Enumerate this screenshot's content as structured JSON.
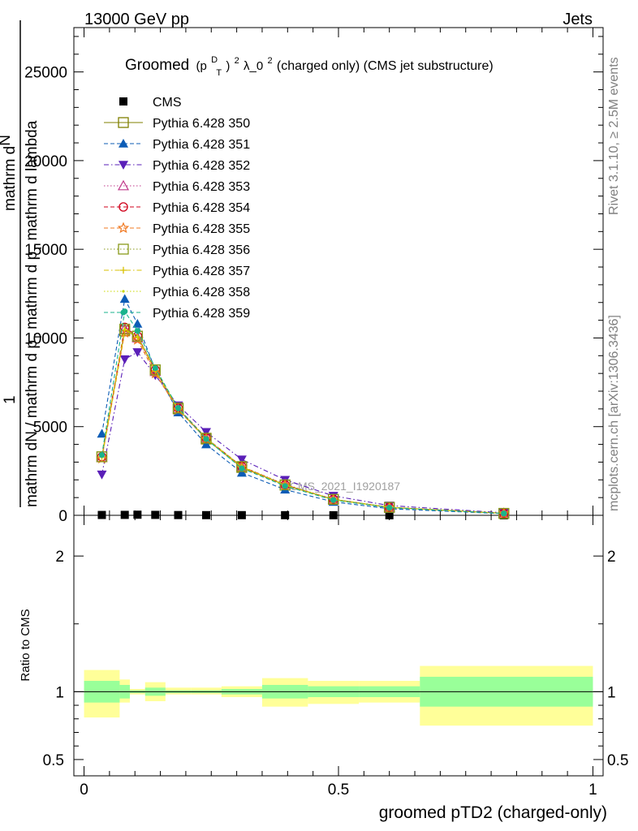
{
  "header": {
    "left": "13000 GeV pp",
    "right": "Jets"
  },
  "side_labels": {
    "rivet": "Rivet 3.1.10, ≥ 2.5M events",
    "mcplots": "mcplots.cern.ch [arXiv:1306.3436]"
  },
  "watermark": "CMS_2021_I1920187",
  "main_title": {
    "prefix": "Groomed",
    "p": "(p",
    "sub": "T",
    "sup": "D",
    "close": ")",
    "sq": "2",
    "rest": " λ_0",
    "sq2": "2",
    "tail": "  (charged only) (CMS jet substructure)"
  },
  "ylabel_main": {
    "one": "1",
    "num": "mathrm d",
    "numN": "N",
    "denom": "mathrm dN / mathrm d p",
    "denomsub": "T",
    "denom2": " mathrm d p",
    "denomsub2": "T",
    "denom3": " mathrm d lambda"
  },
  "ylabel_ratio": "Ratio to CMS",
  "xlabel": "groomed pTD2 (charged-only)",
  "chart_data": [
    {
      "type": "line",
      "panel": "main",
      "xlim": [
        -0.02,
        1.02
      ],
      "ylim": [
        0,
        27500
      ],
      "yticks": [
        0,
        5000,
        10000,
        15000,
        20000,
        25000
      ],
      "ytick_labels": [
        "0",
        "5000",
        "10000",
        "15000",
        "20000",
        "25000"
      ],
      "x": [
        0.035,
        0.08,
        0.105,
        0.14,
        0.185,
        0.24,
        0.31,
        0.395,
        0.49,
        0.6,
        0.825
      ],
      "series": [
        {
          "name": "CMS",
          "color": "#000000",
          "marker": "square-filled",
          "dash": "none",
          "values": [
            20,
            25,
            35,
            25,
            15,
            10,
            10,
            8,
            6,
            4,
            2
          ]
        },
        {
          "name": "Pythia 6.428 350",
          "color": "#808000",
          "marker": "square-open",
          "dash": "solid",
          "values": [
            3300,
            10400,
            10100,
            8200,
            6000,
            4300,
            2700,
            1700,
            900,
            450,
            110
          ]
        },
        {
          "name": "Pythia 6.428 351",
          "color": "#0d5cb6",
          "marker": "triangle-up-filled",
          "dash": "dashed",
          "values": [
            4600,
            12200,
            10800,
            8200,
            5800,
            4000,
            2400,
            1450,
            760,
            370,
            90
          ]
        },
        {
          "name": "Pythia 6.428 352",
          "color": "#5a1fb8",
          "marker": "triangle-down-filled",
          "dash": "dashdot",
          "values": [
            2300,
            8800,
            9200,
            7900,
            6200,
            4700,
            3150,
            2000,
            1100,
            550,
            140
          ]
        },
        {
          "name": "Pythia 6.428 353",
          "color": "#c0398b",
          "marker": "triangle-up-open",
          "dash": "dotted",
          "values": [
            3250,
            10500,
            10000,
            8100,
            6000,
            4350,
            2750,
            1750,
            900,
            450,
            110
          ]
        },
        {
          "name": "Pythia 6.428 354",
          "color": "#d0021b",
          "marker": "circle-open",
          "dash": "dashed",
          "values": [
            3300,
            10600,
            10100,
            8200,
            6050,
            4350,
            2750,
            1720,
            900,
            450,
            110
          ]
        },
        {
          "name": "Pythia 6.428 355",
          "color": "#f07820",
          "marker": "star-open",
          "dash": "dashed",
          "values": [
            3200,
            10300,
            9900,
            8000,
            5950,
            4300,
            2700,
            1700,
            880,
            440,
            110
          ]
        },
        {
          "name": "Pythia 6.428 356",
          "color": "#8a9a1b",
          "marker": "square-open",
          "dash": "dotted",
          "values": [
            3300,
            10500,
            10100,
            8200,
            6050,
            4350,
            2750,
            1720,
            900,
            450,
            110
          ]
        },
        {
          "name": "Pythia 6.428 357",
          "color": "#d8c000",
          "marker": "plus",
          "dash": "dashdot",
          "values": [
            3280,
            10450,
            10050,
            8150,
            6000,
            4330,
            2730,
            1710,
            895,
            448,
            110
          ]
        },
        {
          "name": "Pythia 6.428 358",
          "color": "#c8d800",
          "marker": "dot",
          "dash": "dotted",
          "values": [
            3290,
            10480,
            10080,
            8170,
            6020,
            4340,
            2740,
            1715,
            898,
            449,
            110
          ]
        },
        {
          "name": "Pythia 6.428 359",
          "color": "#1ab38c",
          "marker": "circle-filled",
          "dash": "dashed",
          "values": [
            3400,
            11500,
            10400,
            8300,
            6050,
            4300,
            2650,
            1650,
            860,
            430,
            105
          ]
        }
      ],
      "legend": "top-left"
    },
    {
      "type": "area",
      "panel": "ratio",
      "xlim": [
        -0.02,
        1.02
      ],
      "ylim": [
        0.38,
        2.3
      ],
      "yticks": [
        0.5,
        1,
        2
      ],
      "ytick_labels": [
        "0.5",
        "1",
        "2"
      ],
      "xticks": [
        0,
        0.5,
        1
      ],
      "xtick_labels": [
        "0",
        "0.5",
        "1"
      ],
      "bins": [
        0.0,
        0.07,
        0.09,
        0.12,
        0.16,
        0.21,
        0.27,
        0.35,
        0.44,
        0.54,
        0.66,
        1.0
      ],
      "stat_band": {
        "lo": [
          0.92,
          0.95,
          0.99,
          0.97,
          0.99,
          0.99,
          0.98,
          0.95,
          0.96,
          0.96,
          0.89
        ],
        "hi": [
          1.08,
          1.05,
          1.01,
          1.03,
          1.01,
          1.01,
          1.02,
          1.05,
          1.04,
          1.04,
          1.11
        ],
        "color": "#99ff99"
      },
      "total_band": {
        "lo": [
          0.81,
          0.92,
          0.98,
          0.93,
          0.98,
          0.98,
          0.96,
          0.89,
          0.91,
          0.92,
          0.75
        ],
        "hi": [
          1.16,
          1.09,
          1.02,
          1.07,
          1.03,
          1.03,
          1.04,
          1.1,
          1.08,
          1.08,
          1.19
        ],
        "color": "#ffff99"
      },
      "reference_line": 1
    }
  ]
}
